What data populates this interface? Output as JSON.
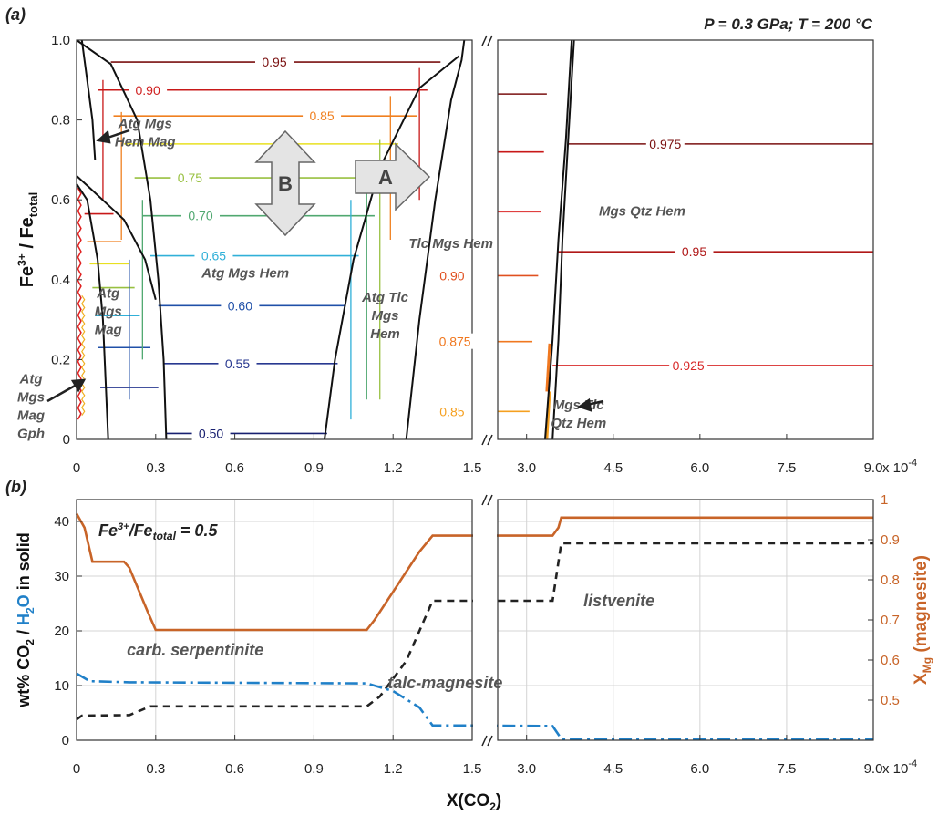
{
  "chart_data": [
    {
      "panel": "(a)",
      "type": "line",
      "conditions": "P = 0.3 GPa; T = 200 °C",
      "xlabel": "X(CO",
      "ylabel": "Fe",
      "ylabel_sup": "3+",
      "ylabel_mid": " / Fe",
      "ylabel_sub": "total",
      "xticks_left": [
        "0",
        "0.3",
        "0.6",
        "0.9",
        "1.2",
        "1.5"
      ],
      "xticks_right": [
        "3.0",
        "4.5",
        "6.0",
        "7.5",
        "9.0"
      ],
      "x_multiplier": "x 10",
      "x_multiplier_exp": "-4",
      "xlim_left": [
        0,
        1.5
      ],
      "xlim_right": [
        2.5,
        9.0
      ],
      "yticks": [
        "0",
        "0.2",
        "0.4",
        "0.6",
        "0.8",
        "1.0"
      ],
      "ylim": [
        0,
        1.0
      ],
      "isopleth_labels_left": [
        {
          "text": "0.95",
          "x": 0.75,
          "y": 0.945,
          "color": "#7a1010"
        },
        {
          "text": "0.90",
          "x": 0.27,
          "y": 0.875,
          "color": "#d02020"
        },
        {
          "text": "0.85",
          "x": 0.93,
          "y": 0.81,
          "color": "#f08020"
        },
        {
          "text": "0.75",
          "x": 0.43,
          "y": 0.655,
          "color": "#98c040"
        },
        {
          "text": "0.70",
          "x": 0.47,
          "y": 0.56,
          "color": "#50a870"
        },
        {
          "text": "0.65",
          "x": 0.52,
          "y": 0.46,
          "color": "#30b0d8"
        },
        {
          "text": "0.60",
          "x": 0.62,
          "y": 0.335,
          "color": "#2050a8"
        },
        {
          "text": "0.55",
          "x": 0.61,
          "y": 0.19,
          "color": "#283890"
        },
        {
          "text": "0.50",
          "x": 0.51,
          "y": 0.015,
          "color": "#182070"
        }
      ],
      "isopleth_labels_right": [
        {
          "text": "0.975",
          "x": 5.4,
          "y": 0.74,
          "color": "#7a1010"
        },
        {
          "text": "0.95",
          "x": 5.9,
          "y": 0.47,
          "color": "#b01818"
        },
        {
          "text": "0.90",
          "x": 1.71,
          "y": 0.41,
          "color": "#e05020"
        },
        {
          "text": "0.925",
          "x": 5.8,
          "y": 0.185,
          "color": "#d82828"
        },
        {
          "text": "0.875",
          "x": 1.76,
          "y": 0.245,
          "color": "#f07820"
        },
        {
          "text": "0.85",
          "x": 1.71,
          "y": 0.07,
          "color": "#f5a020"
        }
      ],
      "field_labels": [
        {
          "lines": [
            "Atg Mgs",
            "Hem Mag"
          ],
          "x": 0.26,
          "y": 0.78
        },
        {
          "lines": [
            "Atg Mgs Hem"
          ],
          "x": 0.64,
          "y": 0.405
        },
        {
          "lines": [
            "Atg",
            "Mgs",
            "Mag"
          ],
          "x": 0.12,
          "y": 0.355
        },
        {
          "lines": [
            "Atg Tlc",
            "Mgs",
            "Hem"
          ],
          "x": 1.17,
          "y": 0.345
        },
        {
          "lines": [
            "Tlc Mgs Hem"
          ],
          "x": 1.69,
          "y": 0.48
        },
        {
          "lines": [
            "Mgs Qtz Hem"
          ],
          "x": 5.0,
          "y": 0.56
        },
        {
          "lines": [
            "Mgs Tlc",
            "Qtz Hem"
          ],
          "x": 3.9,
          "y": 0.075
        },
        {
          "lines": [
            "Atg",
            "Mgs",
            "Mag",
            "Gph"
          ],
          "x": -0.19,
          "y": 0.14
        }
      ],
      "arrows": [
        {
          "label": "A",
          "direction": "right"
        },
        {
          "label": "B",
          "direction": "up-down"
        }
      ]
    },
    {
      "panel": "(b)",
      "type": "line",
      "annotation": "Fe",
      "annotation_sup": "3+",
      "annotation_mid": "/Fe",
      "annotation_sub": "total",
      "annotation_end": " = 0.5",
      "xlabel_main": "X(CO",
      "xlabel_sub": "2",
      "xlabel_end": ")",
      "ylabel_left": {
        "p1": "wt% CO",
        "s1": "2",
        "p2": " / ",
        "h2o_a": "H",
        "h2o_s": "2",
        "h2o_b": "O",
        "p3": " in solid"
      },
      "ylabel_right": {
        "main": "X",
        "sub": "Mg",
        "rest": " (magnesite)"
      },
      "ylim_left": [
        0,
        44
      ],
      "ylim_right": [
        0.4,
        1.0
      ],
      "yticks_left": [
        "0",
        "10",
        "20",
        "30",
        "40"
      ],
      "yticks_right": [
        "0.5",
        "0.6",
        "0.7",
        "0.8",
        "0.9",
        "1"
      ],
      "xticks_left": [
        "0",
        "0.3",
        "0.6",
        "0.9",
        "1.2",
        "1.5"
      ],
      "xticks_right": [
        "3.0",
        "4.5",
        "6.0",
        "7.5",
        "9.0"
      ],
      "x_multiplier": "x 10",
      "x_multiplier_exp": "-4",
      "rock_labels": [
        {
          "text": "carb. serpentinite",
          "x": 0.45,
          "y": 15.5
        },
        {
          "text": "talc-magnesite",
          "x": 1.59,
          "y": 9.5
        },
        {
          "text": "listvenite",
          "x": 4.6,
          "y": 24.5
        }
      ],
      "series": [
        {
          "name": "CO2",
          "axis": "left",
          "color": "#222222",
          "style": "dash",
          "x": [
            0,
            0.02,
            0.2,
            0.28,
            1.1,
            1.15,
            1.25,
            1.35,
            1.5,
            3.45,
            3.6,
            3.7,
            9.0
          ],
          "y": [
            3.8,
            4.5,
            4.6,
            6.2,
            6.2,
            8.0,
            14.5,
            25.5,
            25.5,
            25.5,
            36.0,
            36.0,
            36.0
          ]
        },
        {
          "name": "H2O",
          "axis": "left",
          "color": "#2080c8",
          "style": "dashdot",
          "x": [
            0,
            0.05,
            0.2,
            1.1,
            1.2,
            1.3,
            1.35,
            1.5,
            3.45,
            3.6,
            3.7,
            9.0
          ],
          "y": [
            12.2,
            10.8,
            10.6,
            10.4,
            9.0,
            6.0,
            2.7,
            2.7,
            2.6,
            0.3,
            0.2,
            0.2
          ]
        },
        {
          "name": "XMg",
          "axis": "right",
          "color": "#c86428",
          "style": "solid",
          "x": [
            0,
            0.03,
            0.06,
            0.18,
            0.2,
            0.27,
            0.3,
            1.1,
            1.13,
            1.2,
            1.3,
            1.35,
            1.5,
            3.45,
            3.55,
            3.6,
            3.7,
            9.0
          ],
          "y": [
            0.965,
            0.93,
            0.845,
            0.845,
            0.83,
            0.72,
            0.675,
            0.675,
            0.7,
            0.77,
            0.87,
            0.91,
            0.91,
            0.91,
            0.93,
            0.955,
            0.955,
            0.955
          ]
        }
      ]
    }
  ]
}
